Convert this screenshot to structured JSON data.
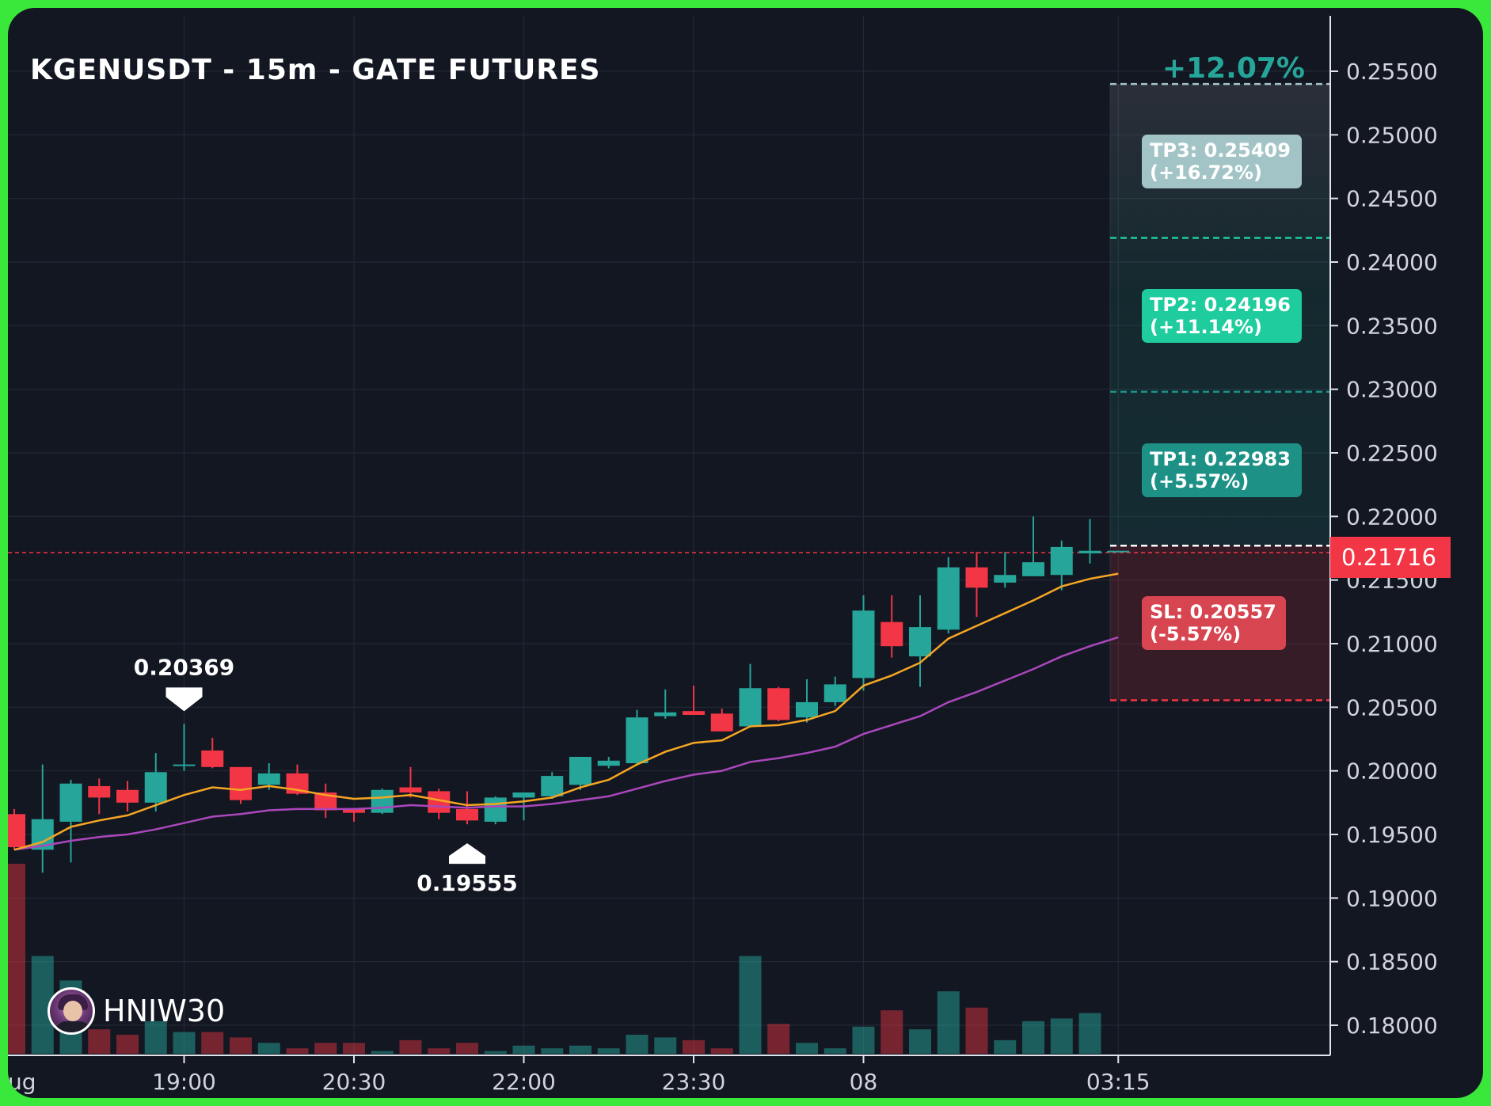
{
  "title": "KGENUSDT - 15m - GATE FUTURES",
  "watermark": {
    "name": "HNIW30",
    "avatar_icon": "avatar-icon"
  },
  "colors": {
    "background": "#131722",
    "frame": "#39e83a",
    "up": "#26a69a",
    "down": "#f23645",
    "ema_fast": "#f5a623",
    "ema_slow": "#ab47bc",
    "tp3_box": "#a3c4c6",
    "tp2_box": "#1fcc9e",
    "tp1_box": "#1e9186",
    "sl_box": "#d64550"
  },
  "chart_data": {
    "type": "candlestick",
    "title": "KGENUSDT - 15m - GATE FUTURES",
    "ylim": [
      0.1775,
      0.2585
    ],
    "yticks": [
      "0.18000",
      "0.18500",
      "0.19000",
      "0.19500",
      "0.20000",
      "0.20500",
      "0.21000",
      "0.21500",
      "0.22000",
      "0.22500",
      "0.23000",
      "0.23500",
      "0.24000",
      "0.24500",
      "0.25000",
      "0.25500"
    ],
    "xticks": [
      {
        "label": "ug",
        "bar": 0
      },
      {
        "label": "19:00",
        "bar": 6
      },
      {
        "label": "20:30",
        "bar": 12
      },
      {
        "label": "22:00",
        "bar": 18
      },
      {
        "label": "23:30",
        "bar": 24
      },
      {
        "label": "08",
        "bar": 30
      },
      {
        "label": "03:15",
        "bar": 39
      }
    ],
    "bar_interval": "1h30m / 6 = 15m per bar; bars drawn at 2-bar spacing steps",
    "ohlc": [
      {
        "o": 0.1966,
        "h": 0.197,
        "l": 0.1938,
        "c": 0.194,
        "v": 0.07
      },
      {
        "o": 0.1938,
        "h": 0.2005,
        "l": 0.192,
        "c": 0.1962,
        "v": 0.036
      },
      {
        "o": 0.196,
        "h": 0.1993,
        "l": 0.1928,
        "c": 0.199,
        "v": 0.027
      },
      {
        "o": 0.1988,
        "h": 0.1994,
        "l": 0.1966,
        "c": 0.1979,
        "v": 0.009
      },
      {
        "o": 0.1985,
        "h": 0.1992,
        "l": 0.1968,
        "c": 0.1975,
        "v": 0.007
      },
      {
        "o": 0.1975,
        "h": 0.2014,
        "l": 0.1968,
        "c": 0.1999,
        "v": 0.012
      },
      {
        "o": 0.2004,
        "h": 0.2037,
        "l": 0.2,
        "c": 0.2005,
        "v": 0.008
      },
      {
        "o": 0.2016,
        "h": 0.2026,
        "l": 0.2002,
        "c": 0.2003,
        "v": 0.008
      },
      {
        "o": 0.2003,
        "h": 0.2003,
        "l": 0.1974,
        "c": 0.1977,
        "v": 0.006
      },
      {
        "o": 0.1989,
        "h": 0.2006,
        "l": 0.1985,
        "c": 0.1998,
        "v": 0.004
      },
      {
        "o": 0.1998,
        "h": 0.2005,
        "l": 0.1981,
        "c": 0.1982,
        "v": 0.002
      },
      {
        "o": 0.1983,
        "h": 0.199,
        "l": 0.1963,
        "c": 0.1969,
        "v": 0.004
      },
      {
        "o": 0.197,
        "h": 0.197,
        "l": 0.196,
        "c": 0.1967,
        "v": 0.004
      },
      {
        "o": 0.1967,
        "h": 0.1986,
        "l": 0.1966,
        "c": 0.1985,
        "v": 0.001
      },
      {
        "o": 0.1987,
        "h": 0.2003,
        "l": 0.1979,
        "c": 0.1983,
        "v": 0.005
      },
      {
        "o": 0.1984,
        "h": 0.1986,
        "l": 0.1962,
        "c": 0.1967,
        "v": 0.002
      },
      {
        "o": 0.197,
        "h": 0.1984,
        "l": 0.1958,
        "c": 0.1961,
        "v": 0.004
      },
      {
        "o": 0.196,
        "h": 0.198,
        "l": 0.1958,
        "c": 0.1979,
        "v": 0.001
      },
      {
        "o": 0.1979,
        "h": 0.1983,
        "l": 0.1961,
        "c": 0.1983,
        "v": 0.003
      },
      {
        "o": 0.198,
        "h": 0.1999,
        "l": 0.1978,
        "c": 0.1996,
        "v": 0.002
      },
      {
        "o": 0.1989,
        "h": 0.2011,
        "l": 0.1985,
        "c": 0.2011,
        "v": 0.003
      },
      {
        "o": 0.2004,
        "h": 0.2011,
        "l": 0.2002,
        "c": 0.2008,
        "v": 0.002
      },
      {
        "o": 0.2006,
        "h": 0.2048,
        "l": 0.2005,
        "c": 0.2042,
        "v": 0.007
      },
      {
        "o": 0.2043,
        "h": 0.2064,
        "l": 0.2041,
        "c": 0.2046,
        "v": 0.006
      },
      {
        "o": 0.2047,
        "h": 0.2067,
        "l": 0.2044,
        "c": 0.2044,
        "v": 0.005
      },
      {
        "o": 0.2045,
        "h": 0.2049,
        "l": 0.2031,
        "c": 0.2031,
        "v": 0.002
      },
      {
        "o": 0.2035,
        "h": 0.2084,
        "l": 0.2034,
        "c": 0.2065,
        "v": 0.036
      },
      {
        "o": 0.2065,
        "h": 0.2066,
        "l": 0.2039,
        "c": 0.204,
        "v": 0.011
      },
      {
        "o": 0.2042,
        "h": 0.2072,
        "l": 0.2038,
        "c": 0.2054,
        "v": 0.004
      },
      {
        "o": 0.2054,
        "h": 0.2074,
        "l": 0.2051,
        "c": 0.2068,
        "v": 0.002
      },
      {
        "o": 0.2073,
        "h": 0.2138,
        "l": 0.2063,
        "c": 0.2126,
        "v": 0.01
      },
      {
        "o": 0.2117,
        "h": 0.2138,
        "l": 0.2089,
        "c": 0.2098,
        "v": 0.016
      },
      {
        "o": 0.209,
        "h": 0.2138,
        "l": 0.2066,
        "c": 0.2113,
        "v": 0.009
      },
      {
        "o": 0.2111,
        "h": 0.2168,
        "l": 0.2108,
        "c": 0.216,
        "v": 0.023
      },
      {
        "o": 0.216,
        "h": 0.2172,
        "l": 0.2121,
        "c": 0.2144,
        "v": 0.017
      },
      {
        "o": 0.2148,
        "h": 0.2172,
        "l": 0.2144,
        "c": 0.2154,
        "v": 0.005
      },
      {
        "o": 0.2153,
        "h": 0.22,
        "l": 0.2153,
        "c": 0.2164,
        "v": 0.012
      },
      {
        "o": 0.2154,
        "h": 0.2181,
        "l": 0.2142,
        "c": 0.2176,
        "v": 0.013
      },
      {
        "o": 0.2171,
        "h": 0.2198,
        "l": 0.2163,
        "c": 0.2173,
        "v": 0.015
      },
      {
        "o": 0.2173,
        "h": 0.2173,
        "l": 0.2173,
        "c": 0.2173,
        "v": 0.0
      }
    ],
    "ema_fast": [
      0.1938,
      0.1944,
      0.1956,
      0.1961,
      0.1965,
      0.1973,
      0.1981,
      0.1987,
      0.1985,
      0.1988,
      0.1985,
      0.1981,
      0.1978,
      0.1979,
      0.1981,
      0.1977,
      0.1973,
      0.1974,
      0.1976,
      0.1979,
      0.1987,
      0.1993,
      0.2005,
      0.2015,
      0.2022,
      0.2024,
      0.2035,
      0.2036,
      0.204,
      0.2047,
      0.2067,
      0.2075,
      0.2085,
      0.2104,
      0.2114,
      0.2124,
      0.2134,
      0.2145,
      0.2151,
      0.2155
    ],
    "ema_slow": [
      0.1938,
      0.1941,
      0.1945,
      0.1948,
      0.195,
      0.1954,
      0.1959,
      0.1964,
      0.1966,
      0.1969,
      0.197,
      0.197,
      0.197,
      0.1971,
      0.1973,
      0.1972,
      0.1971,
      0.1972,
      0.1972,
      0.1974,
      0.1977,
      0.198,
      0.1986,
      0.1992,
      0.1997,
      0.2,
      0.2007,
      0.201,
      0.2014,
      0.2019,
      0.2029,
      0.2036,
      0.2043,
      0.2054,
      0.2062,
      0.2071,
      0.208,
      0.209,
      0.2098,
      0.2105
    ],
    "volume_max": 0.07,
    "current_price": "0.21716",
    "current_price_value": 0.21716,
    "entry_value": 0.2177,
    "annotations": [
      {
        "label": "0.20369",
        "type": "high",
        "bar": 6,
        "value": 0.20369
      },
      {
        "label": "0.19555",
        "type": "low",
        "bar": 16,
        "value": 0.19555
      }
    ],
    "targets": [
      {
        "name": "TP3",
        "line1": "TP3: 0.25409",
        "line2": "(+16.72%)",
        "value": 0.25409,
        "line_value": 0.254
      },
      {
        "name": "TP2",
        "line1": "TP2: 0.24196",
        "line2": "(+11.14%)",
        "value": 0.24196,
        "line_value": 0.2419
      },
      {
        "name": "TP1",
        "line1": "TP1: 0.22983",
        "line2": "(+5.57%)",
        "value": 0.22983,
        "line_value": 0.2298
      },
      {
        "name": "SL",
        "line1": "SL: 0.20557",
        "line2": "(-5.57%)",
        "value": 0.20557,
        "line_value": 0.20555
      }
    ],
    "range_label": "+12.07%"
  }
}
